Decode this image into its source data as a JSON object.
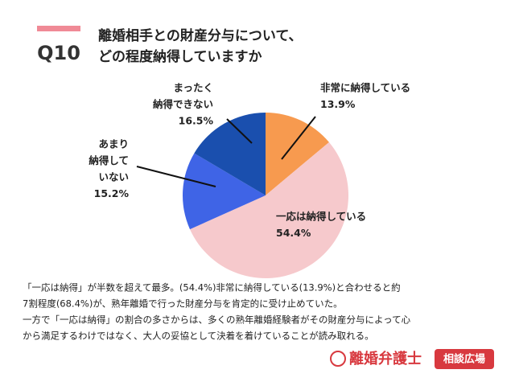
{
  "question_number": "Q10",
  "chart_data": {
    "type": "pie",
    "title": [
      "離婚相手との財産分与について、",
      "どの程度納得していますか"
    ],
    "categories": [
      [
        "非常に納得している"
      ],
      [
        "一応は納得している"
      ],
      [
        "あまり",
        "納得して",
        "いない"
      ],
      [
        "まったく",
        "納得できない"
      ]
    ],
    "values": [
      13.9,
      54.4,
      15.2,
      16.5
    ],
    "value_labels": [
      "13.9%",
      "54.4%",
      "15.2%",
      "16.5%"
    ],
    "colors": [
      "#f79a4f",
      "#f6c9cc",
      "#3f64e6",
      "#1a4fae"
    ]
  },
  "annotations": [
    "「一応は納得」が半数を超えて最多。(54.4%)非常に納得している(13.9%)と合わせると約",
    "7割程度(68.4%)が、熟年離婚で行った財産分与を肯定的に受け止めていた。",
    "一方で「一応は納得」の割合の多さからは、多くの熟年離婚経験者がその財産分与によって心",
    "から満足するわけではなく、大人の妥協として決着を着けていることが読み取れる。"
  ],
  "footer": {
    "brand": "離婚弁護士",
    "badge": "相談広場"
  }
}
